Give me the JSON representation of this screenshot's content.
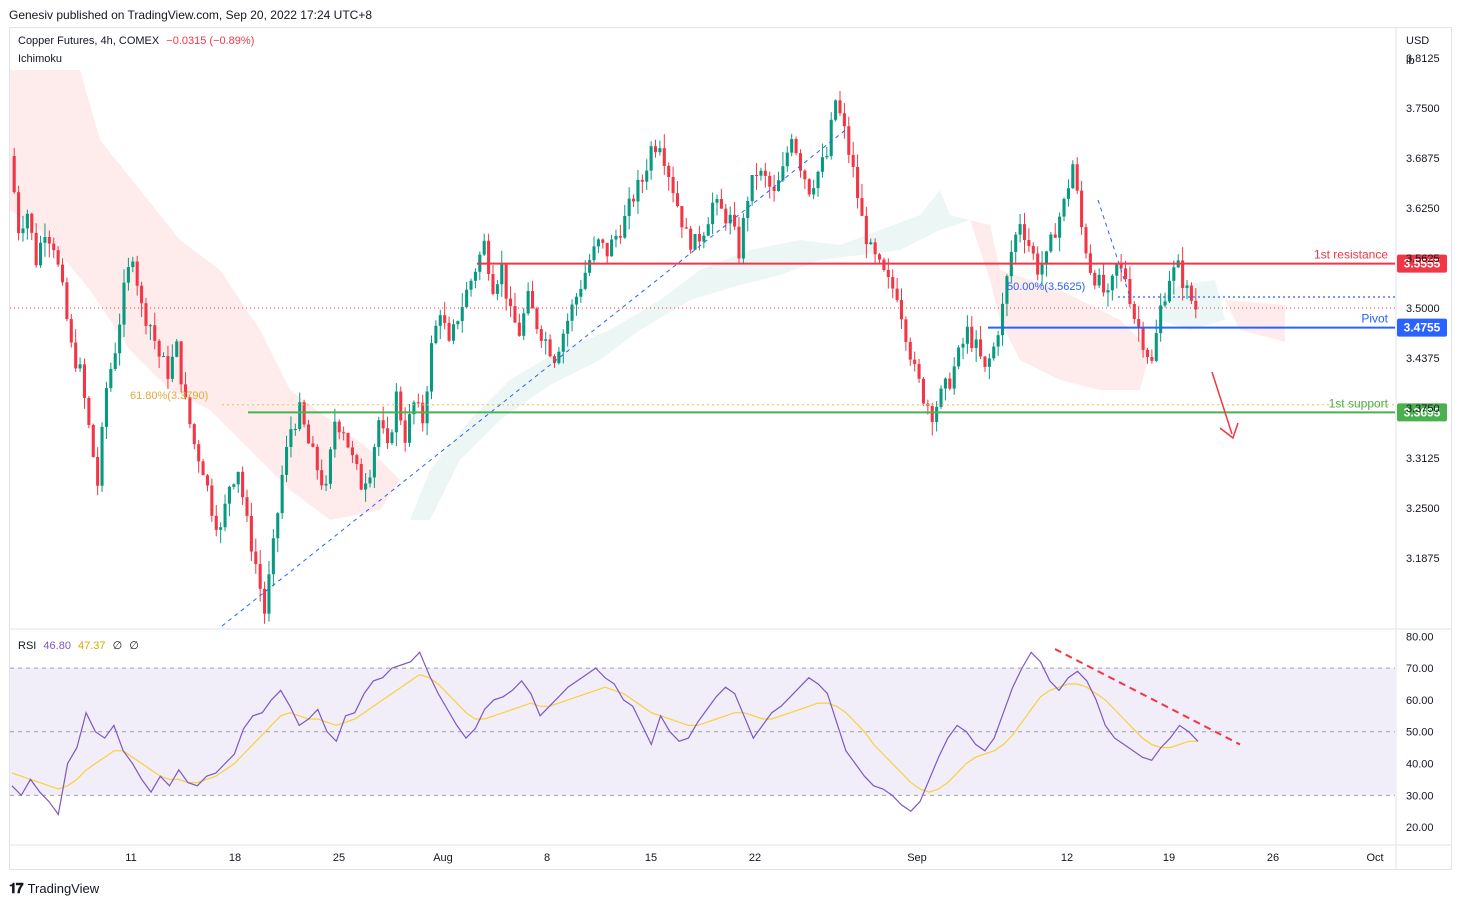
{
  "header": {
    "published": "Genesiv published on TradingView.com, Sep 20, 2022 17:24 UTC+8"
  },
  "legend": {
    "symbol": "Copper Futures, 4h, COMEX",
    "change": "−0.0315 (−0.89%)",
    "indicator": "Ichimoku",
    "rsi_label": "RSI",
    "rsi_value": "46.80",
    "rsi_ma": "47.37",
    "rsi_extra1": "∅",
    "rsi_extra2": "∅"
  },
  "axis": {
    "currency": "USD",
    "unit": "lb"
  },
  "footer": {
    "brand": "TradingView"
  },
  "colors": {
    "up": "#089981",
    "down": "#f23645",
    "resistance": "#f23645",
    "pivot": "#2962ff",
    "support": "#4caf50",
    "rsi": "#7e57c2",
    "rsi_ma": "#f7d13b"
  },
  "chart_data": [
    {
      "type": "candlestick",
      "symbol": "Copper Futures, 4h, COMEX",
      "y_ticks": [
        "3.8125",
        "3.7500",
        "3.6875",
        "3.6250",
        "3.5625",
        "3.5000",
        "3.4375",
        "3.3750",
        "3.3125",
        "3.2500",
        "3.1875"
      ],
      "ylim": [
        3.1,
        3.85
      ],
      "x_ticks": [
        "11",
        "18",
        "25",
        "Aug",
        "8",
        "15",
        "22",
        "Sep",
        "12",
        "19",
        "26",
        "Oct"
      ],
      "levels": [
        {
          "name": "1st resistance",
          "value": 3.5555,
          "label": "3.5555",
          "color": "#f23645"
        },
        {
          "name": "Pivot",
          "value": 3.4755,
          "label": "3.4755",
          "color": "#2962ff"
        },
        {
          "name": "1st support",
          "value": 3.3695,
          "label": "3.3695",
          "color": "#4caf50"
        }
      ],
      "annotations": [
        {
          "text": "61.80%(3.3790)",
          "value": 3.379
        },
        {
          "text": "50.00%(3.5625)",
          "value": 3.5625
        }
      ],
      "last_price": 3.5,
      "path": [
        3.69,
        3.6,
        3.62,
        3.56,
        3.6,
        3.58,
        3.52,
        3.45,
        3.42,
        3.35,
        3.28,
        3.4,
        3.45,
        3.52,
        3.57,
        3.5,
        3.48,
        3.44,
        3.42,
        3.45,
        3.38,
        3.33,
        3.3,
        3.25,
        3.22,
        3.28,
        3.3,
        3.23,
        3.18,
        3.12,
        3.2,
        3.29,
        3.35,
        3.37,
        3.33,
        3.3,
        3.27,
        3.36,
        3.35,
        3.31,
        3.28,
        3.3,
        3.36,
        3.32,
        3.39,
        3.34,
        3.38,
        3.36,
        3.45,
        3.5,
        3.45,
        3.49,
        3.52,
        3.55,
        3.58,
        3.53,
        3.55,
        3.49,
        3.47,
        3.51,
        3.48,
        3.46,
        3.44,
        3.47,
        3.5,
        3.53,
        3.56,
        3.58,
        3.57,
        3.59,
        3.61,
        3.64,
        3.66,
        3.7,
        3.71,
        3.67,
        3.63,
        3.59,
        3.58,
        3.6,
        3.63,
        3.62,
        3.61,
        3.57,
        3.64,
        3.67,
        3.66,
        3.64,
        3.67,
        3.72,
        3.68,
        3.65,
        3.67,
        3.69,
        3.76,
        3.72,
        3.67,
        3.61,
        3.57,
        3.55,
        3.53,
        3.52,
        3.47,
        3.42,
        3.39,
        3.37,
        3.39,
        3.41,
        3.44,
        3.47,
        3.45,
        3.42,
        3.45,
        3.5,
        3.57,
        3.61,
        3.58,
        3.55,
        3.56,
        3.6,
        3.63,
        3.68,
        3.6,
        3.55,
        3.53,
        3.51,
        3.55,
        3.54,
        3.49,
        3.46,
        3.43,
        3.5,
        3.54,
        3.55,
        3.52,
        3.5
      ],
      "price_labels": [
        "3.5555",
        "3.4755",
        "3.3695"
      ]
    },
    {
      "type": "line",
      "name": "RSI",
      "y_ticks": [
        "80.00",
        "70.00",
        "60.00",
        "50.00",
        "40.00",
        "30.00",
        "20.00"
      ],
      "ylim": [
        15,
        82
      ],
      "bands": [
        30,
        50,
        70
      ],
      "rsi": [
        33,
        30,
        35,
        31,
        28,
        24,
        40,
        45,
        56,
        50,
        48,
        52,
        44,
        40,
        35,
        31,
        36,
        33,
        38,
        34,
        33,
        36,
        37,
        40,
        43,
        51,
        55,
        56,
        60,
        63,
        58,
        52,
        54,
        57,
        50,
        47,
        55,
        56,
        62,
        66,
        67,
        70,
        71,
        72,
        75,
        68,
        62,
        57,
        52,
        48,
        51,
        57,
        60,
        61,
        63,
        66,
        62,
        55,
        58,
        61,
        64,
        66,
        68,
        70,
        67,
        65,
        60,
        58,
        52,
        46,
        55,
        50,
        47,
        48,
        53,
        57,
        61,
        64,
        62,
        55,
        48,
        52,
        56,
        58,
        61,
        64,
        67,
        65,
        62,
        53,
        44,
        40,
        36,
        33,
        32,
        30,
        27,
        25,
        28,
        35,
        42,
        48,
        52,
        50,
        46,
        44,
        48,
        56,
        64,
        70,
        75,
        72,
        66,
        63,
        67,
        69,
        66,
        60,
        52,
        48,
        46,
        44,
        42,
        41,
        45,
        48,
        52,
        50,
        47
      ],
      "rsi_ma": [
        37,
        36,
        35,
        34,
        33,
        32,
        33,
        35,
        38,
        40,
        42,
        44,
        44,
        42,
        40,
        38,
        36,
        35,
        35,
        34,
        34,
        35,
        36,
        38,
        40,
        43,
        46,
        49,
        52,
        55,
        56,
        55,
        54,
        54,
        53,
        52,
        53,
        54,
        56,
        58,
        60,
        62,
        64,
        66,
        68,
        67,
        65,
        62,
        59,
        56,
        54,
        54,
        55,
        56,
        57,
        58,
        59,
        58,
        58,
        59,
        60,
        61,
        62,
        63,
        64,
        63,
        62,
        60,
        58,
        56,
        55,
        54,
        53,
        52,
        52,
        53,
        54,
        55,
        56,
        56,
        55,
        54,
        54,
        55,
        56,
        57,
        58,
        59,
        59,
        58,
        56,
        53,
        50,
        46,
        43,
        40,
        37,
        34,
        32,
        31,
        32,
        34,
        37,
        40,
        42,
        43,
        44,
        46,
        49,
        53,
        57,
        61,
        63,
        64,
        65,
        65,
        64,
        62,
        60,
        57,
        54,
        51,
        48,
        46,
        45,
        45,
        46,
        47,
        47
      ]
    }
  ],
  "labels": {
    "resistance": "1st resistance",
    "pivot": "Pivot",
    "support": "1st support"
  }
}
